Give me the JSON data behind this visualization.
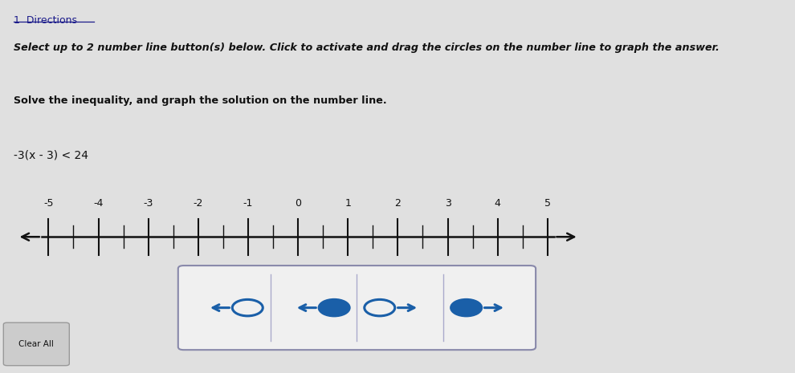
{
  "bg_color": "#e0e0e0",
  "title_text": "1  Directions",
  "subtitle_text": "Select up to 2 number line button(s) below. Click to activate and drag the circles on the number line to graph the answer.",
  "instruction_text": "Solve the inequality, and graph the solution on the number line.",
  "equation_text": "-3(x - 3) < 24",
  "number_line_labels": [
    -5,
    -4,
    -3,
    -2,
    -1,
    0,
    1,
    2,
    3,
    4,
    5
  ],
  "line_color": "#111111",
  "button_color": "#1a5fa8",
  "clear_button_text": "Clear All",
  "title_color": "#1a1a8a",
  "text_color": "#111111"
}
